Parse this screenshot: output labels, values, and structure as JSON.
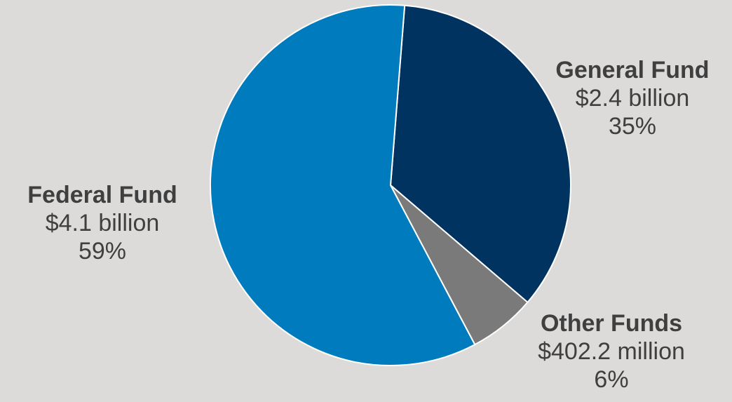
{
  "chart_data": {
    "type": "pie",
    "title": "",
    "slices": [
      {
        "name": "General Fund",
        "value": 2.4,
        "amount_label": "$2.4 billion",
        "percent": 35,
        "percent_label": "35%",
        "color": "#003360"
      },
      {
        "name": "Other Funds",
        "value": 0.4022,
        "amount_label": "$402.2 million",
        "percent": 6,
        "percent_label": "6%",
        "color": "#7a7a7a"
      },
      {
        "name": "Federal Fund",
        "value": 4.1,
        "amount_label": "$4.1 billion",
        "percent": 59,
        "percent_label": "59%",
        "color": "#007bbd"
      }
    ],
    "slice_border_color": "#ffffff",
    "background_color": "#dcdbda",
    "label_color": "#3f3f3f"
  }
}
